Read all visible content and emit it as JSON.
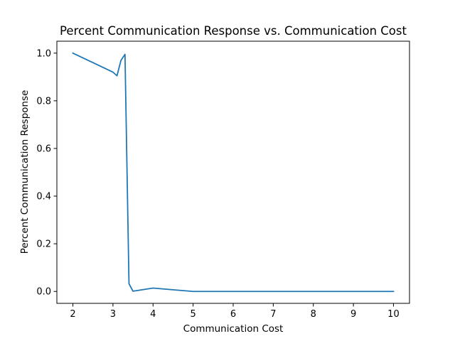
{
  "chart_data": {
    "type": "line",
    "title": "Percent Communication Response vs. Communication Cost",
    "xlabel": "Communication Cost",
    "ylabel": "Percent Communication Response",
    "xlim": [
      1.6,
      10.4
    ],
    "ylim": [
      -0.05,
      1.05
    ],
    "xticks": [
      2,
      3,
      4,
      5,
      6,
      7,
      8,
      9,
      10
    ],
    "yticks": [
      0.0,
      0.2,
      0.4,
      0.6,
      0.8,
      1.0
    ],
    "xtick_labels": [
      "2",
      "3",
      "4",
      "5",
      "6",
      "7",
      "8",
      "9",
      "10"
    ],
    "ytick_labels": [
      "0.0",
      "0.2",
      "0.4",
      "0.6",
      "0.8",
      "1.0"
    ],
    "grid": false,
    "series": [
      {
        "color": "#1f77b4",
        "x": [
          2.0,
          3.0,
          3.1,
          3.2,
          3.3,
          3.4,
          3.5,
          4.0,
          5.0,
          6.0,
          7.0,
          8.0,
          9.0,
          10.0
        ],
        "y": [
          1.0,
          0.92,
          0.905,
          0.97,
          0.995,
          0.032,
          0.001,
          0.014,
          0.0,
          0.0,
          0.0,
          0.0,
          0.0,
          0.0
        ]
      }
    ]
  }
}
